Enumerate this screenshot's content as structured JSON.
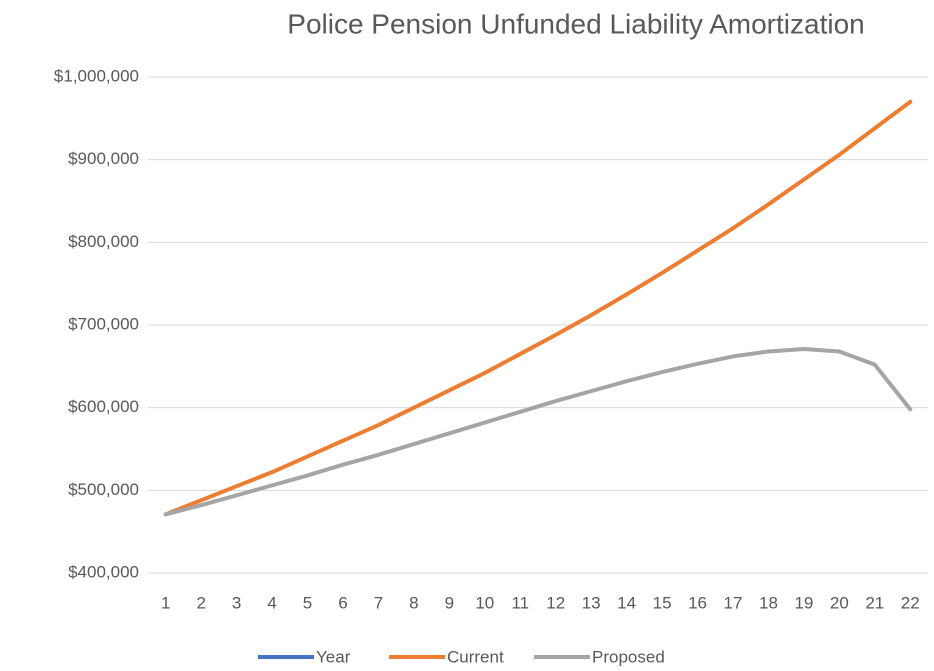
{
  "chart_data": {
    "type": "line",
    "title": "Police Pension Unfunded Liability Amortization",
    "categories": [
      "1",
      "2",
      "3",
      "4",
      "5",
      "6",
      "7",
      "8",
      "9",
      "10",
      "11",
      "12",
      "13",
      "14",
      "15",
      "16",
      "17",
      "18",
      "19",
      "20",
      "21",
      "22"
    ],
    "series": [
      {
        "name": "Year",
        "color": "#4472c4",
        "values": [
          null,
          null,
          null,
          null,
          null,
          null,
          null,
          null,
          null,
          null,
          null,
          null,
          null,
          null,
          null,
          null,
          null,
          null,
          null,
          null,
          null,
          null
        ]
      },
      {
        "name": "Current",
        "color": "#ed7d31",
        "values": [
          471000,
          488000,
          505000,
          522000,
          541000,
          560000,
          579000,
          600000,
          621000,
          642000,
          665000,
          688000,
          712000,
          737000,
          763000,
          790000,
          817000,
          846000,
          876000,
          906000,
          938000,
          970000
        ]
      },
      {
        "name": "Proposed",
        "color": "#a5a5a5",
        "values": [
          471000,
          482000,
          494000,
          506000,
          518000,
          531000,
          543000,
          556000,
          569000,
          582000,
          595000,
          608000,
          620000,
          632000,
          643000,
          653000,
          662000,
          668000,
          671000,
          668000,
          652000,
          598000
        ]
      }
    ],
    "ylim": [
      400000,
      1000000
    ],
    "yticks": [
      {
        "value": 400000,
        "label": "$400,000"
      },
      {
        "value": 500000,
        "label": "$500,000"
      },
      {
        "value": 600000,
        "label": "$600,000"
      },
      {
        "value": 700000,
        "label": "$700,000"
      },
      {
        "value": 800000,
        "label": "$800,000"
      },
      {
        "value": 900000,
        "label": "$900,000"
      },
      {
        "value": 1000000,
        "label": "$1,000,000"
      }
    ],
    "grid": true,
    "legend": "bottom"
  }
}
